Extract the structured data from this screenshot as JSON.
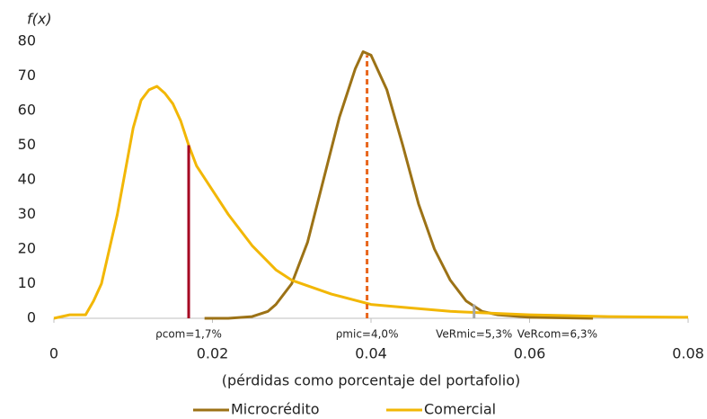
{
  "chart_data": {
    "type": "line",
    "ylabel": "f(x)",
    "xlabel": "(pérdidas como porcentaje del portafolio)",
    "xlim": [
      0,
      0.08
    ],
    "xticks": [
      0,
      0.02,
      0.04,
      0.06,
      0.08
    ],
    "ylim": [
      0,
      80
    ],
    "yticks": [
      0,
      10,
      20,
      30,
      40,
      50,
      60,
      70,
      80
    ],
    "grid": false,
    "legend": "bottom",
    "series": [
      {
        "name": "Microcrédito",
        "color": "#9c7216",
        "x": [
          0.019,
          0.022,
          0.025,
          0.027,
          0.028,
          0.03,
          0.032,
          0.034,
          0.036,
          0.038,
          0.039,
          0.04,
          0.041,
          0.042,
          0.044,
          0.046,
          0.048,
          0.05,
          0.052,
          0.054,
          0.056,
          0.06,
          0.068
        ],
        "values": [
          0,
          0,
          0.5,
          2,
          4,
          10,
          22,
          40,
          58,
          72,
          77,
          76,
          71,
          66,
          50,
          33,
          20,
          11,
          5,
          2,
          1,
          0.3,
          0
        ]
      },
      {
        "name": "Comercial",
        "color": "#f2b705",
        "x": [
          0,
          0.002,
          0.004,
          0.005,
          0.006,
          0.008,
          0.01,
          0.011,
          0.012,
          0.013,
          0.014,
          0.015,
          0.016,
          0.017,
          0.018,
          0.02,
          0.022,
          0.025,
          0.028,
          0.03,
          0.035,
          0.04,
          0.045,
          0.05,
          0.055,
          0.06,
          0.07,
          0.08
        ],
        "values": [
          0,
          1,
          1,
          5,
          10,
          30,
          55,
          63,
          66,
          67,
          65,
          62,
          57,
          50,
          44,
          37,
          30,
          21,
          14,
          11,
          7,
          4,
          3,
          2,
          1.5,
          1,
          0.5,
          0.3
        ]
      }
    ],
    "markers": [
      {
        "label": "ρcom=1,7%",
        "x": 0.017,
        "y": 50,
        "color": "#a50021",
        "style": "solid"
      },
      {
        "label": "ρmic=4,0%",
        "x": 0.0395,
        "y": 76,
        "color": "#e8661c",
        "style": "dashed"
      },
      {
        "label": "VeRmic=5,3%",
        "x": 0.053,
        "y": 4,
        "color": "#a6a6a6",
        "style": "solid"
      },
      {
        "label": "VeRcom=6,3%",
        "x": 0.0635
      }
    ]
  }
}
